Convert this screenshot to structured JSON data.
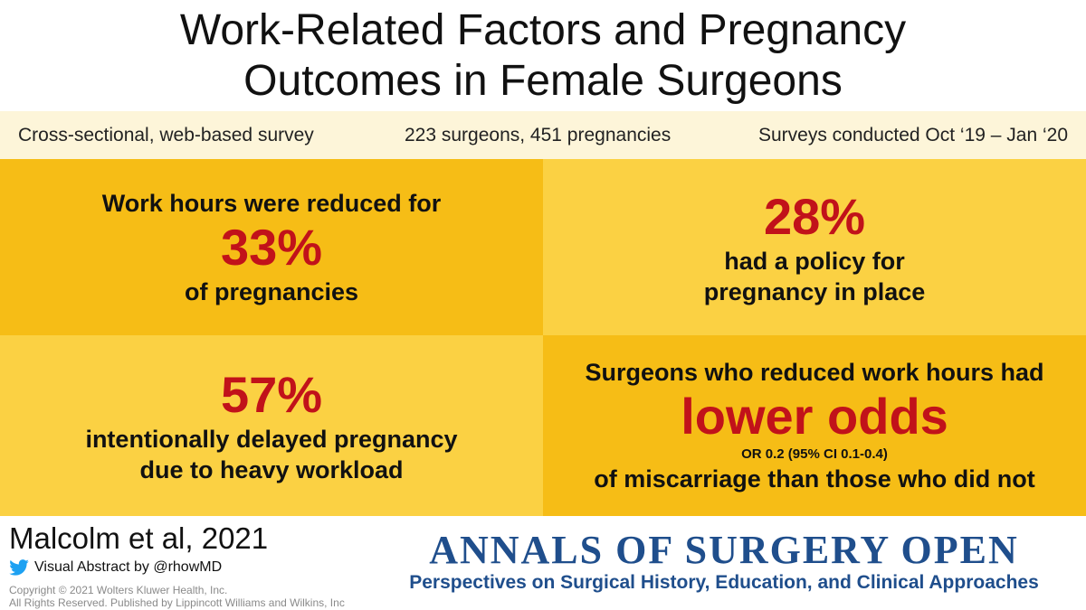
{
  "title": {
    "line1": "Work-Related Factors and Pregnancy",
    "line2": "Outcomes in Female Surgeons"
  },
  "info": {
    "design": "Cross-sectional, web-based survey",
    "sample": "223 surgeons, 451 pregnancies",
    "period": "Surveys conducted Oct ‘19 – Jan ‘20"
  },
  "panels": {
    "top_left": {
      "lead": "Work hours were reduced for",
      "stat": "33%",
      "tail": "of pregnancies"
    },
    "top_right": {
      "stat": "28%",
      "tail1": "had a policy for",
      "tail2": "pregnancy in place"
    },
    "bottom_left": {
      "stat": "57%",
      "tail1": "intentionally delayed pregnancy",
      "tail2": "due to heavy workload"
    },
    "bottom_right": {
      "lead": "Surgeons who reduced work hours had",
      "stat": "lower odds",
      "note": "OR 0.2 (95% CI 0.1-0.4)",
      "tail": "of miscarriage than those who did not"
    }
  },
  "footer": {
    "citation": "Malcolm et al, 2021",
    "abstract_by": "Visual Abstract by @rhowMD",
    "copyright1": "Copyright © 2021 Wolters Kluwer Health, Inc.",
    "copyright2": "All Rights Reserved. Published by Lippincott Williams and Wilkins, Inc",
    "journal_name": "ANNALS OF SURGERY OPEN",
    "journal_sub": "Perspectives on Surgical History, Education, and Clinical Approaches"
  },
  "colors": {
    "accent_red": "#c1121a",
    "panel_dark": "#f6bd16",
    "panel_light": "#fbd143",
    "info_bar": "#fdf5d9",
    "journal_blue": "#1f4e8c",
    "twitter_blue": "#1da1f2"
  },
  "icons": {
    "twitter": "twitter-bird-icon"
  }
}
